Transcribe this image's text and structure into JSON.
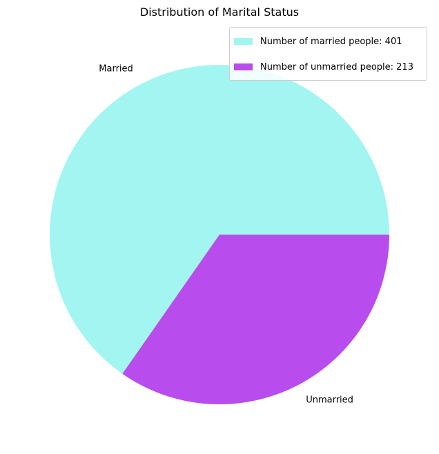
{
  "chart_data": {
    "type": "pie",
    "title": "Distribution of Marital Status",
    "categories": [
      "Married",
      "Unmarried"
    ],
    "values": [
      401,
      213
    ],
    "colors": [
      "#a3f5f2",
      "#b84cec"
    ],
    "legend": {
      "placement": "top-right",
      "entries": [
        "Number of married people: 401",
        "Number of unmarried people: 213"
      ]
    }
  }
}
